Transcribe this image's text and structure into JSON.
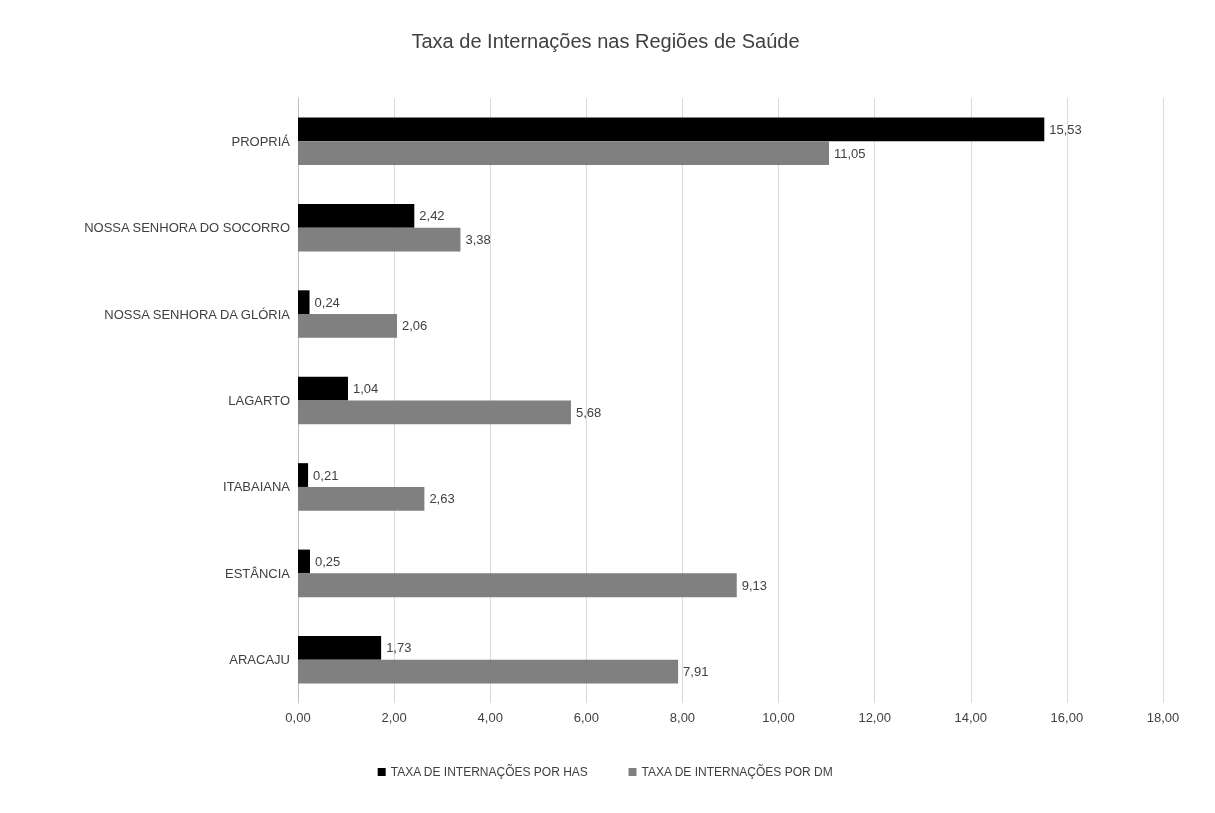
{
  "chart_data": {
    "type": "bar",
    "orientation": "horizontal",
    "title": "Taxa de Internações nas Regiões de Saúde",
    "categories": [
      "PROPRIÁ",
      "NOSSA SENHORA DO SOCORRO",
      "NOSSA SENHORA DA GLÓRIA",
      "LAGARTO",
      "ITABAIANA",
      "ESTÂNCIA",
      "ARACAJU"
    ],
    "series": [
      {
        "name": "TAXA DE INTERNAÇÕES POR HAS",
        "color": "#000000",
        "values": [
          15.53,
          2.42,
          0.24,
          1.04,
          0.21,
          0.25,
          1.73
        ],
        "value_labels": [
          "15,53",
          "2,42",
          "0,24",
          "1,04",
          "0,21",
          "0,25",
          "1,73"
        ]
      },
      {
        "name": "TAXA DE INTERNAÇÕES POR DM",
        "color": "#808080",
        "values": [
          11.05,
          3.38,
          2.06,
          5.68,
          2.63,
          9.13,
          7.91
        ],
        "value_labels": [
          "11,05",
          "3,38",
          "2,06",
          "5,68",
          "2,63",
          "9,13",
          "7,91"
        ]
      }
    ],
    "xlim": [
      0,
      18
    ],
    "xticks": [
      {
        "value": 0,
        "label": "0,00"
      },
      {
        "value": 2,
        "label": "2,00"
      },
      {
        "value": 4,
        "label": "4,00"
      },
      {
        "value": 6,
        "label": "6,00"
      },
      {
        "value": 8,
        "label": "8,00"
      },
      {
        "value": 10,
        "label": "10,00"
      },
      {
        "value": 12,
        "label": "12,00"
      },
      {
        "value": 14,
        "label": "14,00"
      },
      {
        "value": 16,
        "label": "16,00"
      },
      {
        "value": 18,
        "label": "18,00"
      }
    ],
    "grid": "x",
    "legend": "bottom"
  }
}
